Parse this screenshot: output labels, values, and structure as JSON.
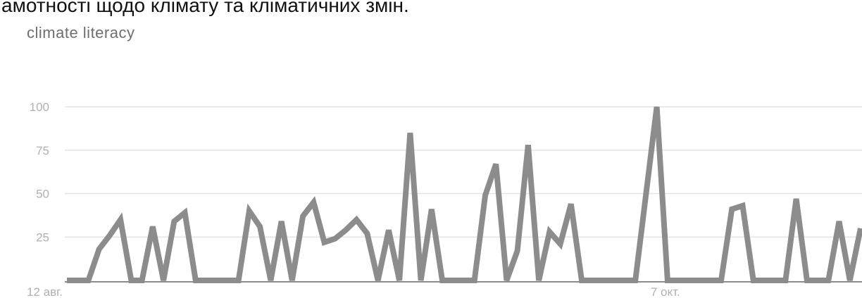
{
  "caption": "амотності щодо клімату та кліматичних змін.",
  "chart_data": {
    "type": "line",
    "title": "climate literacy",
    "xlabel": "",
    "ylabel": "",
    "ylim": [
      0,
      100
    ],
    "yticks": [
      25,
      50,
      75,
      100
    ],
    "xtick_labels": [
      {
        "index": 0,
        "label": "12 авг."
      },
      {
        "index": 56,
        "label": "7 окт."
      }
    ],
    "grid": true,
    "legend": "none",
    "line_color": "#8c8c8c",
    "series": [
      {
        "values": [
          0,
          0,
          0,
          18,
          26,
          35,
          0,
          0,
          31,
          0,
          34,
          39,
          0,
          0,
          0,
          0,
          0,
          40,
          31,
          0,
          34,
          0,
          37,
          45,
          22,
          24,
          29,
          35,
          27,
          0,
          29,
          0,
          85,
          0,
          41,
          0,
          0,
          0,
          0,
          49,
          67,
          0,
          17,
          78,
          0,
          28,
          21,
          44,
          0,
          0,
          0,
          0,
          0,
          0,
          50,
          100,
          0,
          0,
          0,
          0,
          0,
          0,
          41,
          43,
          0,
          0,
          0,
          0,
          47,
          0,
          0,
          0,
          34,
          0,
          30
        ]
      }
    ]
  }
}
